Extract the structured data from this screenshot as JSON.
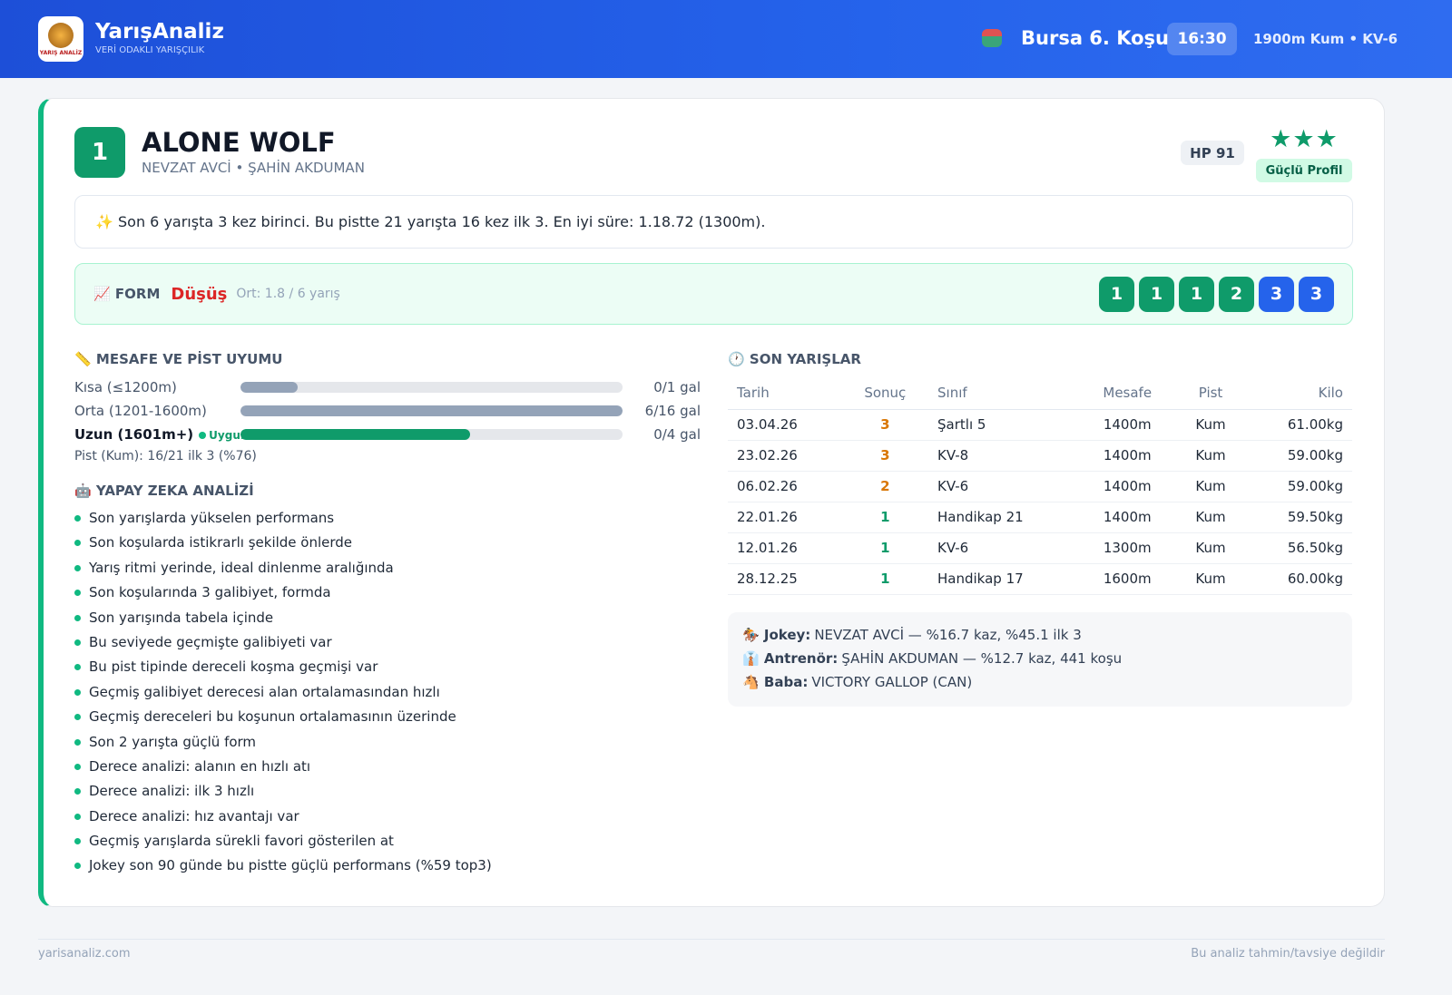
{
  "header": {
    "brand": "YarışAnaliz",
    "tagline": "VERİ ODAKLI YARIŞÇILIK",
    "logo_text": "YARIŞ ANALİZ",
    "race": "Bursa 6. Koşu",
    "time": "16:30",
    "info": "1900m Kum • KV-6"
  },
  "horse": {
    "number": "1",
    "name": "ALONE WOLF",
    "people": "NEVZAT AVCİ • ŞAHİN AKDUMAN",
    "hp": "HP 91",
    "rating": 3,
    "badge": "Güçlü Profil"
  },
  "summary": "✨ Son 6 yarışta 3 kez birinci. Bu pistte 21 yarışta 16 kez ilk 3. En iyi süre: 1.18.72 (1300m).",
  "form": {
    "label": "📈 FORM",
    "trend": "Düşüş",
    "average": "Ort: 1.8 / 6 yarış",
    "results": [
      "1",
      "1",
      "1",
      "2",
      "3",
      "3"
    ]
  },
  "distance": {
    "title": "📏 MESAFE VE PİST UYUMU",
    "rows": [
      {
        "label": "Kısa (≤1200m)",
        "value": "0/1 gal",
        "bar": 15
      },
      {
        "label": "Orta (1201-1600m)",
        "value": "6/16 gal",
        "bar": 100
      },
      {
        "label": "Uzun (1601m+)",
        "badge": "Uygun",
        "value": "0/4 gal",
        "bar": 60
      }
    ],
    "track": "Pist (Kum): 16/21 ilk 3 (%76)"
  },
  "ai": {
    "title": "🤖 YAPAY ZEKA ANALİZİ",
    "items": [
      "Son yarışlarda yükselen performans",
      "Son koşularda istikrarlı şekilde önlerde",
      "Yarış ritmi yerinde, ideal dinlenme aralığında",
      "Son koşularında 3 galibiyet, formda",
      "Son yarışında tabela içinde",
      "Bu seviyede geçmişte galibiyeti var",
      "Bu pist tipinde dereceli koşma geçmişi var",
      "Geçmiş galibiyet derecesi alan ortalamasından hızlı",
      "Geçmiş dereceleri bu koşunun ortalamasının üzerinde",
      "Son 2 yarışta güçlü form",
      "Derece analizi: alanın en hızlı atı",
      "Derece analizi: ilk 3 hızlı",
      "Derece analizi: hız avantajı var",
      "Geçmiş yarışlarda sürekli favori gösterilen at",
      "Jokey son 90 günde bu pistte güçlü performans (%59 top3)"
    ]
  },
  "recent": {
    "title": "🕐 SON YARIŞLAR",
    "columns": [
      "Tarih",
      "Sonuç",
      "Sınıf",
      "Mesafe",
      "Pist",
      "Kilo"
    ],
    "rows": [
      [
        "03.04.26",
        "3",
        "Şartlı 5",
        "1400m",
        "Kum",
        "61.00kg"
      ],
      [
        "23.02.26",
        "3",
        "KV-8",
        "1400m",
        "Kum",
        "59.00kg"
      ],
      [
        "06.02.26",
        "2",
        "KV-6",
        "1400m",
        "Kum",
        "59.00kg"
      ],
      [
        "22.01.26",
        "1",
        "Handikap 21",
        "1400m",
        "Kum",
        "59.50kg"
      ],
      [
        "12.01.26",
        "1",
        "KV-6",
        "1300m",
        "Kum",
        "56.50kg"
      ],
      [
        "28.12.25",
        "1",
        "Handikap 17",
        "1600m",
        "Kum",
        "60.00kg"
      ]
    ]
  },
  "info": [
    {
      "label": "🏇 Jokey:",
      "value": "NEVZAT AVCİ — %16.7 kaz, %45.1 ilk 3"
    },
    {
      "label": "👔 Antrenör:",
      "value": "ŞAHİN AKDUMAN — %12.7 kaz, 441 koşu"
    },
    {
      "label": "🐴 Baba:",
      "value": "VICTORY GALLOP (CAN)"
    }
  ],
  "footer": {
    "site": "yarisanaliz.com",
    "disclaimer": "Bu analiz tahmin/tavsiye değildir"
  }
}
